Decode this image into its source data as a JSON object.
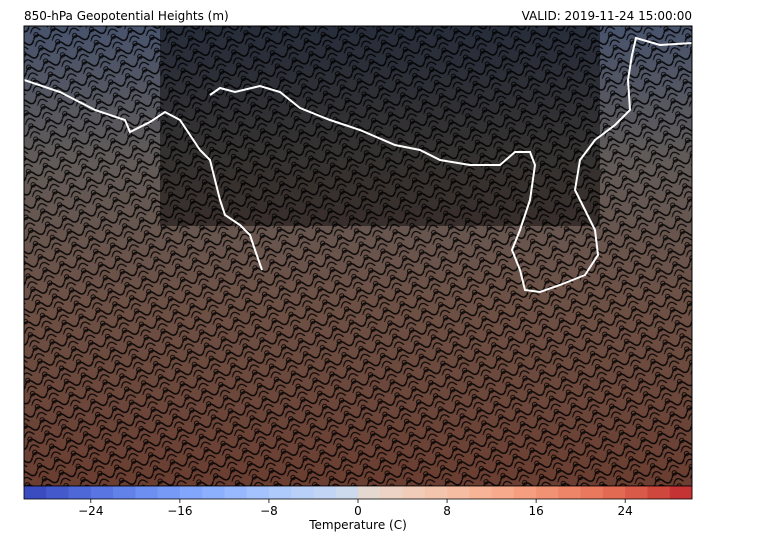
{
  "title": "850-hPa Geopotential Heights (m)",
  "valid": "VALID: 2019-11-24 15:00:00",
  "colorbar": {
    "label": "Temperature (C)",
    "lim": [
      -30,
      30
    ],
    "ticks": [
      {
        "value": -24,
        "label": "−24"
      },
      {
        "value": -16,
        "label": "−16"
      },
      {
        "value": -8,
        "label": "−8"
      },
      0,
      8,
      16,
      24
    ],
    "levels": [
      -30,
      -28,
      -26,
      -24,
      -22,
      -20,
      -18,
      -16,
      -14,
      -12,
      -10,
      -8,
      -6,
      -4,
      -2,
      0,
      2,
      4,
      6,
      8,
      10,
      12,
      14,
      16,
      18,
      20,
      22,
      24,
      26,
      28,
      30
    ],
    "colors": [
      "#3b4cc0",
      "#445acc",
      "#4e68d8",
      "#5875e1",
      "#6282ea",
      "#6c8ff1",
      "#779af7",
      "#82a6fb",
      "#8db0fe",
      "#98b9ff",
      "#a3c2fe",
      "#aec9fc",
      "#b9d0f9",
      "#c3d5f4",
      "#cdd9ec",
      "#e5d8d1",
      "#ecd3c5",
      "#f1ccb8",
      "#f4c5ad",
      "#f6bda2",
      "#f7b497",
      "#f7aa8c",
      "#f59f80",
      "#f29274",
      "#ee8468",
      "#e9785d",
      "#e26952",
      "#da5a49",
      "#d0473d",
      "#c53334"
    ]
  }
}
